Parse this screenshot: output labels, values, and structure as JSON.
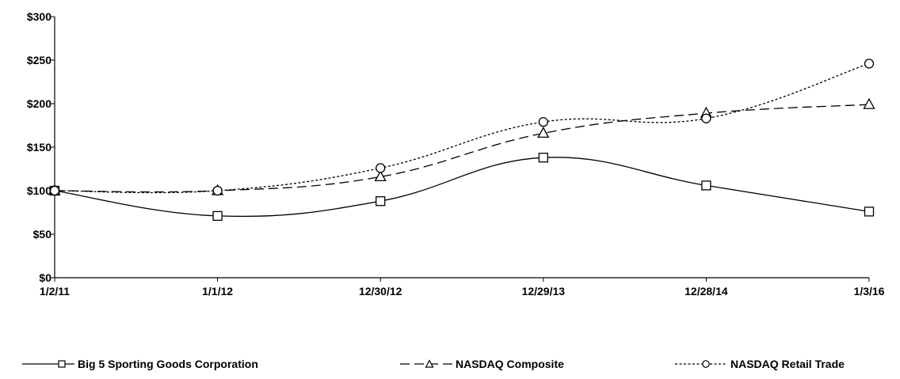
{
  "chart_data": {
    "type": "line",
    "title": "",
    "xlabel": "",
    "ylabel": "",
    "categories": [
      "1/2/11",
      "1/1/12",
      "12/30/12",
      "12/29/13",
      "12/28/14",
      "1/3/16"
    ],
    "y_ticks": [
      "$0",
      "$50",
      "$100",
      "$150",
      "$200",
      "$250",
      "$300"
    ],
    "ylim": [
      0,
      300
    ],
    "grid": false,
    "legend_position": "bottom",
    "series": [
      {
        "name": "Big 5 Sporting Goods Corporation",
        "values": [
          100,
          71,
          88,
          138,
          106,
          76
        ],
        "marker": "square",
        "dash": "solid"
      },
      {
        "name": "NASDAQ Composite",
        "values": [
          100,
          100,
          116,
          166,
          189,
          199
        ],
        "marker": "triangle",
        "dash": "long-dash"
      },
      {
        "name": "NASDAQ Retail Trade",
        "values": [
          100,
          100,
          126,
          179,
          183,
          246
        ],
        "marker": "circle",
        "dash": "short-dash"
      }
    ]
  }
}
